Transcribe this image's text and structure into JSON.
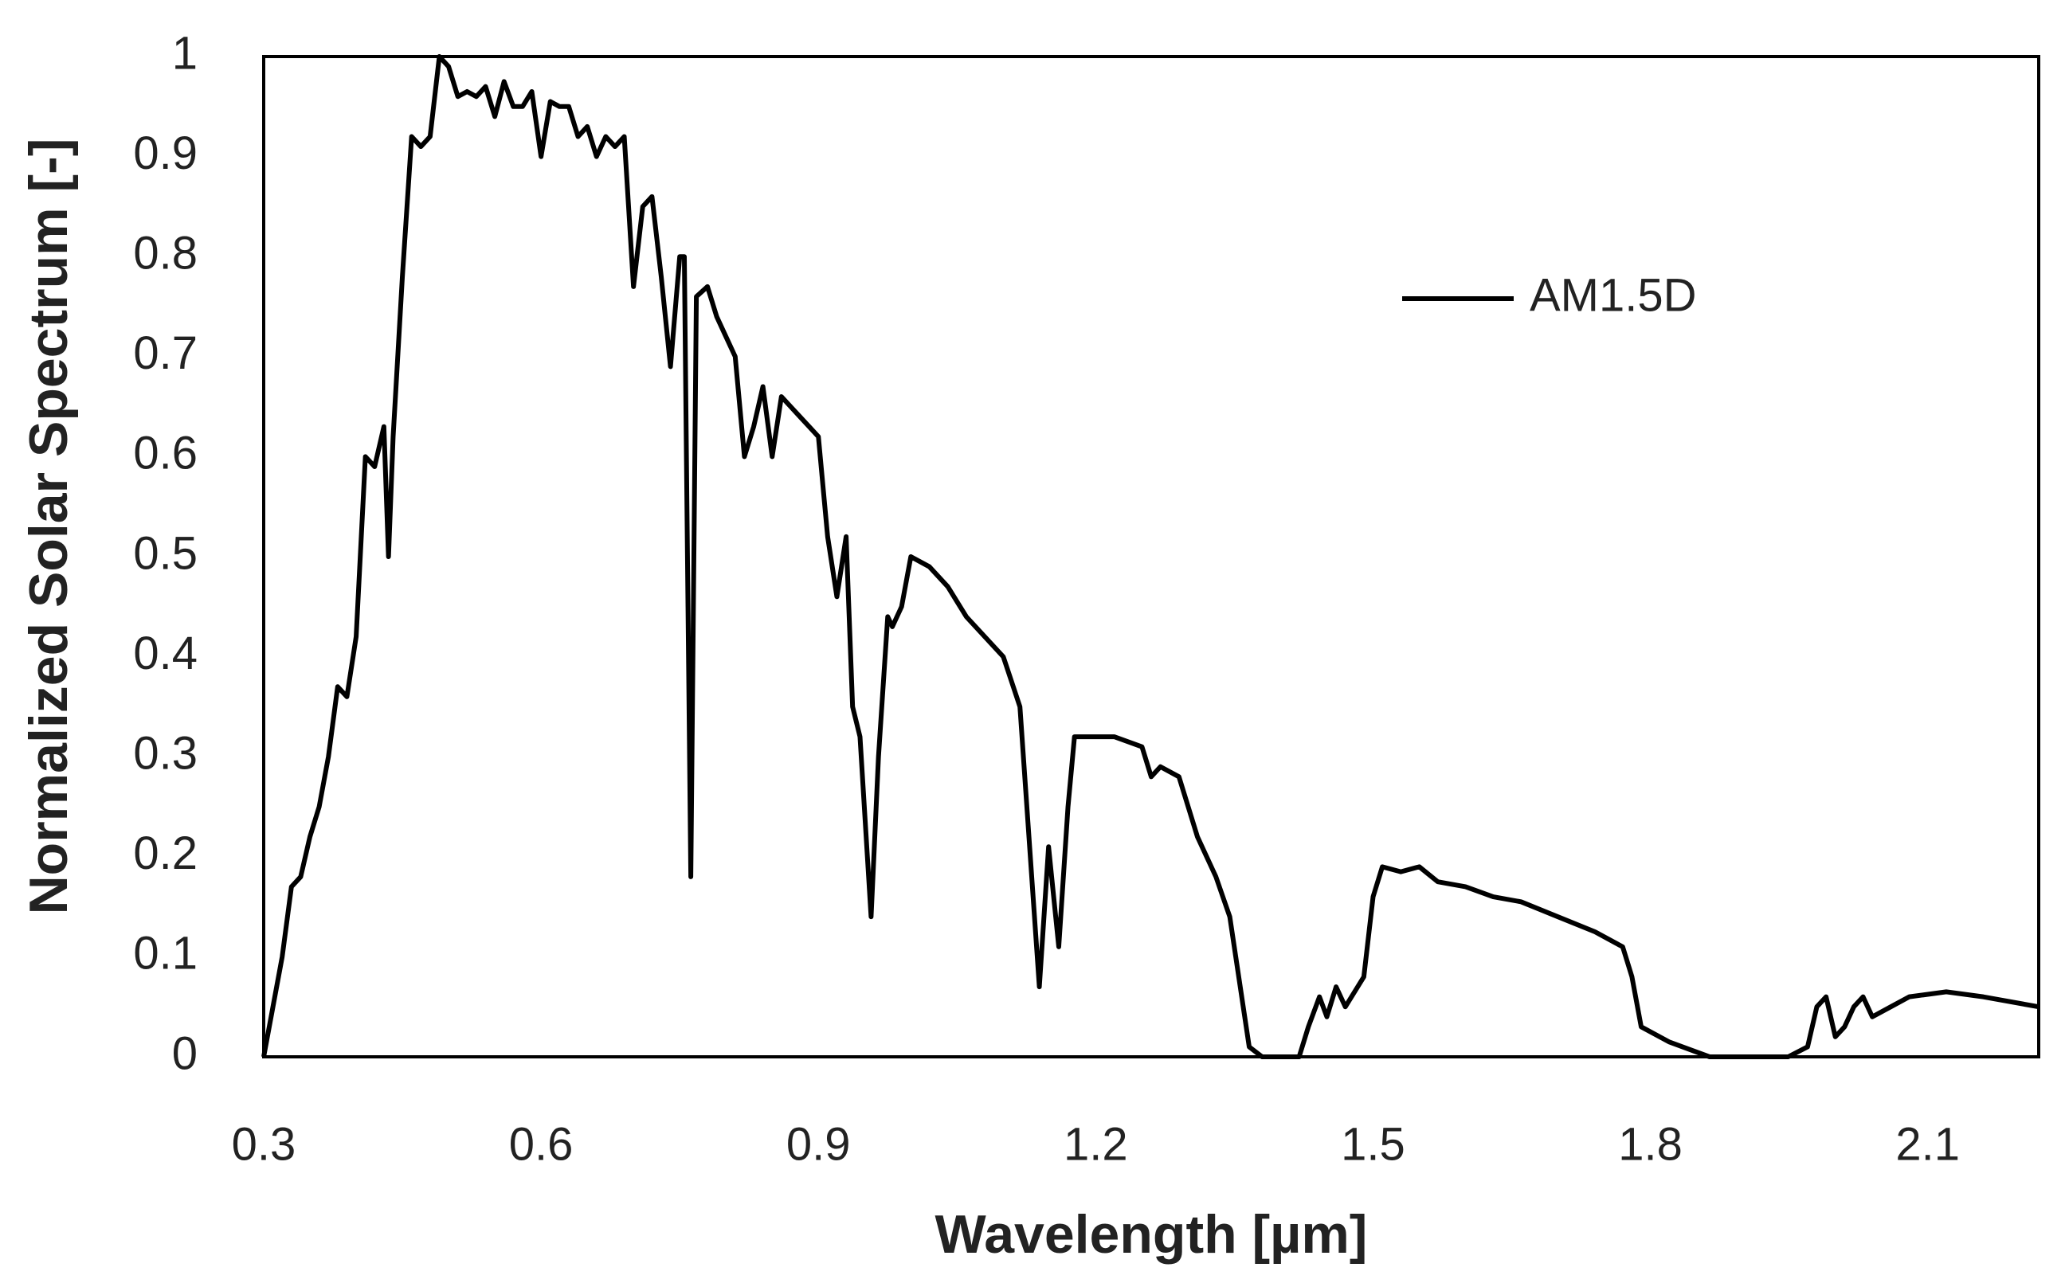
{
  "chart_data": {
    "type": "line",
    "x_label": "Wavelength [µm]",
    "y_label": "Normalized Solar Spectrum [-]",
    "x": [
      0.3,
      0.31,
      0.32,
      0.33,
      0.34,
      0.35,
      0.36,
      0.37,
      0.38,
      0.39,
      0.4,
      0.41,
      0.42,
      0.43,
      0.435,
      0.44,
      0.45,
      0.46,
      0.47,
      0.48,
      0.49,
      0.5,
      0.51,
      0.52,
      0.53,
      0.54,
      0.55,
      0.56,
      0.57,
      0.58,
      0.59,
      0.6,
      0.61,
      0.62,
      0.63,
      0.64,
      0.65,
      0.66,
      0.67,
      0.68,
      0.69,
      0.7,
      0.71,
      0.72,
      0.73,
      0.74,
      0.75,
      0.755,
      0.762,
      0.768,
      0.78,
      0.79,
      0.8,
      0.81,
      0.82,
      0.83,
      0.84,
      0.85,
      0.86,
      0.87,
      0.88,
      0.89,
      0.9,
      0.91,
      0.92,
      0.93,
      0.937,
      0.945,
      0.957,
      0.965,
      0.975,
      0.98,
      0.99,
      1.0,
      1.02,
      1.04,
      1.06,
      1.08,
      1.1,
      1.118,
      1.139,
      1.149,
      1.16,
      1.17,
      1.177,
      1.19,
      1.22,
      1.25,
      1.26,
      1.27,
      1.29,
      1.31,
      1.33,
      1.345,
      1.366,
      1.38,
      1.42,
      1.43,
      1.442,
      1.45,
      1.46,
      1.47,
      1.49,
      1.5,
      1.51,
      1.53,
      1.55,
      1.57,
      1.6,
      1.63,
      1.66,
      1.7,
      1.74,
      1.77,
      1.78,
      1.79,
      1.82,
      1.864,
      1.949,
      1.97,
      1.98,
      1.99,
      2.0,
      2.01,
      2.02,
      2.03,
      2.04,
      2.06,
      2.08,
      2.12,
      2.16,
      2.22
    ],
    "series": [
      {
        "name": "AM1.5D",
        "color": "#000000",
        "values": [
          0,
          0.05,
          0.1,
          0.17,
          0.18,
          0.22,
          0.25,
          0.3,
          0.37,
          0.36,
          0.42,
          0.6,
          0.59,
          0.63,
          0.5,
          0.62,
          0.78,
          0.92,
          0.91,
          0.92,
          1.0,
          0.99,
          0.96,
          0.965,
          0.96,
          0.97,
          0.94,
          0.975,
          0.95,
          0.95,
          0.965,
          0.9,
          0.955,
          0.95,
          0.95,
          0.92,
          0.93,
          0.9,
          0.92,
          0.91,
          0.92,
          0.77,
          0.85,
          0.86,
          0.78,
          0.69,
          0.8,
          0.8,
          0.18,
          0.76,
          0.77,
          0.74,
          0.72,
          0.7,
          0.6,
          0.63,
          0.67,
          0.6,
          0.66,
          0.65,
          0.64,
          0.63,
          0.62,
          0.52,
          0.46,
          0.52,
          0.35,
          0.32,
          0.14,
          0.3,
          0.44,
          0.43,
          0.45,
          0.5,
          0.49,
          0.47,
          0.44,
          0.42,
          0.4,
          0.35,
          0.07,
          0.21,
          0.11,
          0.25,
          0.32,
          0.32,
          0.32,
          0.31,
          0.28,
          0.29,
          0.28,
          0.22,
          0.18,
          0.14,
          0.01,
          0,
          0,
          0.03,
          0.06,
          0.04,
          0.07,
          0.05,
          0.08,
          0.16,
          0.19,
          0.185,
          0.19,
          0.175,
          0.17,
          0.16,
          0.155,
          0.14,
          0.125,
          0.11,
          0.08,
          0.03,
          0.015,
          0,
          0,
          0.01,
          0.05,
          0.06,
          0.02,
          0.03,
          0.05,
          0.06,
          0.04,
          0.05,
          0.06,
          0.065,
          0.06,
          0.05
        ]
      }
    ],
    "xlim": [
      0.3,
      2.22
    ],
    "ylim": [
      0,
      1
    ],
    "xticks": [
      0.3,
      0.6,
      0.9,
      1.2,
      1.5,
      1.8,
      2.1
    ],
    "yticks": [
      0,
      0.1,
      0.2,
      0.3,
      0.4,
      0.5,
      0.6,
      0.7,
      0.8,
      0.9,
      1
    ],
    "grid": false,
    "legend": "upper right"
  }
}
